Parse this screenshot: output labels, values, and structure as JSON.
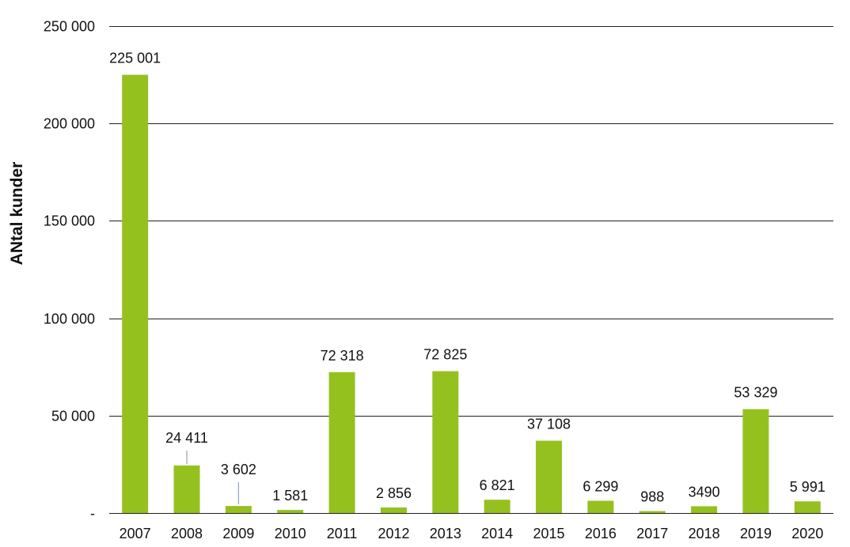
{
  "chart_data": {
    "type": "bar",
    "ylabel": "ANtal kunder",
    "xlabel": "",
    "title": "",
    "ylim": [
      0,
      250000
    ],
    "yticks": [
      0,
      50000,
      100000,
      150000,
      200000,
      250000
    ],
    "ytick_labels": [
      "-",
      "50 000",
      "100 000",
      "150 000",
      "200 000",
      "250 000"
    ],
    "grid": true,
    "bar_color": "#95C11F",
    "categories": [
      "2007",
      "2008",
      "2009",
      "2010",
      "2011",
      "2012",
      "2013",
      "2014",
      "2015",
      "2016",
      "2017",
      "2018",
      "2019",
      "2020"
    ],
    "values": [
      225001,
      24411,
      3602,
      1581,
      72318,
      2856,
      72825,
      6821,
      37108,
      6299,
      988,
      3490,
      53329,
      5991
    ],
    "data_labels": [
      "225 001",
      "24 411",
      "3 602",
      "1 581",
      "72 318",
      "2 856",
      "72 825",
      "6 821",
      "37 108",
      "6 299",
      "988",
      "3490",
      "53 329",
      "5 991"
    ]
  }
}
